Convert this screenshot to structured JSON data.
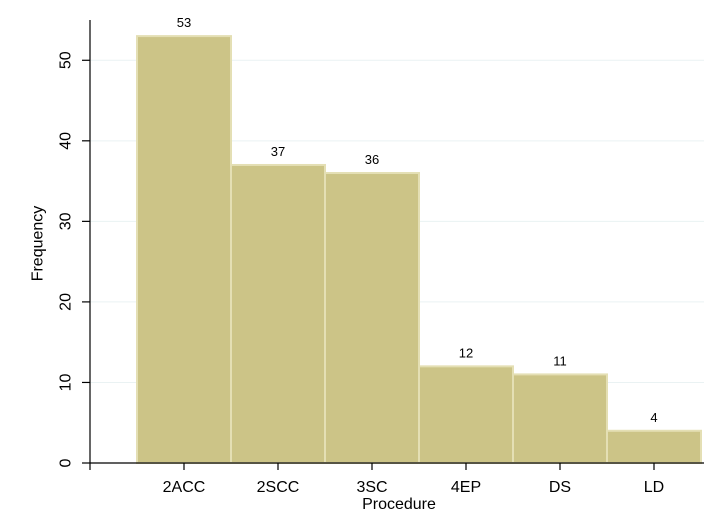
{
  "chart_data": {
    "type": "bar",
    "categories": [
      "2ACC",
      "2SCC",
      "3SC",
      "4EP",
      "DS",
      "LD"
    ],
    "values": [
      53,
      37,
      36,
      12,
      11,
      4
    ],
    "data_labels": [
      "53",
      "37",
      "36",
      "12",
      "11",
      "4"
    ],
    "title": "",
    "xlabel": "Procedure",
    "ylabel": "Frequency",
    "ylim": [
      0,
      55
    ],
    "yticks": [
      0,
      10,
      20,
      30,
      40,
      50
    ],
    "ytick_labels": [
      "0",
      "10",
      "20",
      "30",
      "40",
      "50"
    ],
    "grid": true,
    "bar_color": "#ccc487",
    "bar_edge_color": "#e4dfb4",
    "grid_color": "#eaf2f3",
    "axis_color": "#000000"
  }
}
